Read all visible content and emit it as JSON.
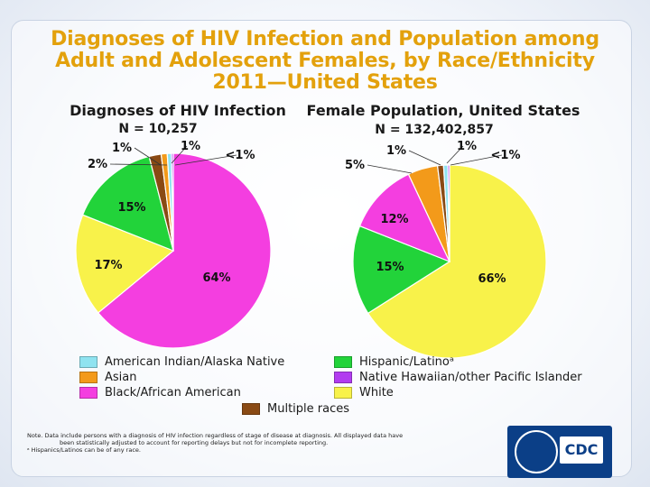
{
  "title_lines": [
    "Diagnoses of HIV Infection and Population among",
    "Adult and Adolescent Females, by Race/Ethnicity",
    "2011—United States"
  ],
  "chart_data": [
    {
      "type": "pie",
      "title": "Diagnoses of HIV Infection",
      "n_label": "N = 10,257",
      "slices": [
        {
          "name": "Black/African American",
          "value": 64,
          "label": "64%"
        },
        {
          "name": "White",
          "value": 17,
          "label": "17%"
        },
        {
          "name": "Hispanic/Latino",
          "value": 15,
          "label": "15%"
        },
        {
          "name": "Multiple races",
          "value": 2,
          "label": "2%"
        },
        {
          "name": "Asian",
          "value": 1,
          "label": "1%"
        },
        {
          "name": "American Indian/Alaska Native",
          "value": 0.7,
          "label": "1%"
        },
        {
          "name": "Native Hawaiian/other Pacific Islander",
          "value": 0.3,
          "label": "<1%"
        }
      ]
    },
    {
      "type": "pie",
      "title": "Female Population, United States",
      "n_label": "N = 132,402,857",
      "slices": [
        {
          "name": "White",
          "value": 66,
          "label": "66%"
        },
        {
          "name": "Hispanic/Latino",
          "value": 15,
          "label": "15%"
        },
        {
          "name": "Black/African American",
          "value": 12,
          "label": "12%"
        },
        {
          "name": "Asian",
          "value": 5,
          "label": "5%"
        },
        {
          "name": "Multiple races",
          "value": 1,
          "label": "1%"
        },
        {
          "name": "American Indian/Alaska Native",
          "value": 0.7,
          "label": "1%"
        },
        {
          "name": "Native Hawaiian/other Pacific Islander",
          "value": 0.3,
          "label": "<1%"
        }
      ]
    }
  ],
  "colors": {
    "American Indian/Alaska Native": "#8fe3f0",
    "Asian": "#f39a1a",
    "Black/African American": "#f43ee0",
    "Multiple races": "#8a4a14",
    "Hispanic/Latino": "#22d33a",
    "Native Hawaiian/other Pacific Islander": "#b23cf0",
    "White": "#f8f24a"
  },
  "legend": {
    "american_indian": "American Indian/Alaska Native",
    "asian": "Asian",
    "black": "Black/African American",
    "multiple": "Multiple races",
    "hispanic": "Hispanic/Latinoᵃ",
    "nhopi": "Native Hawaiian/other Pacific Islander",
    "white": "White"
  },
  "note_lines": [
    "Note. Data include persons with a diagnosis of HIV infection regardless of stage of disease at diagnosis. All displayed data have",
    "been statistically adjusted to account for reporting delays but not for incomplete reporting.",
    "ᵃ Hispanics/Latinos can be of any race."
  ],
  "logo_text": "CDC"
}
